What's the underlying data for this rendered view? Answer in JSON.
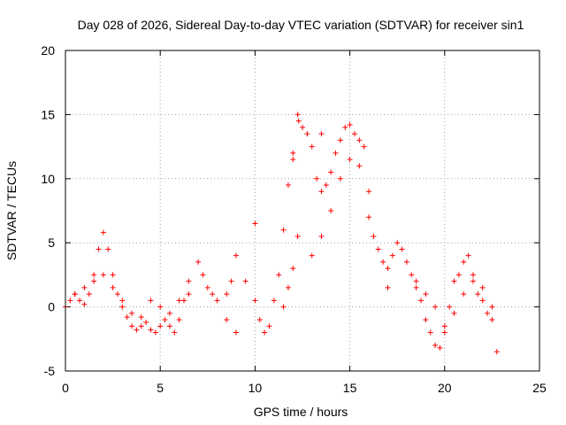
{
  "chart_data": {
    "type": "scatter",
    "title": "Day 028 of 2026, Sidereal Day-to-day VTEC variation (SDTVAR) for receiver sin1",
    "xlabel": "GPS time / hours",
    "ylabel": "SDTVAR / TECUs",
    "xlim": [
      0,
      25
    ],
    "ylim": [
      -5,
      20
    ],
    "x_ticks": [
      "0",
      "5",
      "10",
      "15",
      "20",
      "25"
    ],
    "y_ticks": [
      "-5",
      "0",
      "5",
      "10",
      "15",
      "20"
    ],
    "grid": true,
    "marker": "plus",
    "color": "#ff0000",
    "series": [
      {
        "name": "SDTVAR",
        "x": [
          0.0,
          0.25,
          0.5,
          0.75,
          1.0,
          1.25,
          1.5,
          1.75,
          2.0,
          2.25,
          2.5,
          2.75,
          3.0,
          3.25,
          3.5,
          3.75,
          4.0,
          4.25,
          4.5,
          4.75,
          5.0,
          5.25,
          5.5,
          5.75,
          6.0,
          6.25,
          6.5,
          7.0,
          7.25,
          7.5,
          7.75,
          8.0,
          8.5,
          8.75,
          9.0,
          9.5,
          10.0,
          10.25,
          10.5,
          10.75,
          11.0,
          11.25,
          11.5,
          11.75,
          12.0,
          12.25,
          12.5,
          12.75,
          13.0,
          13.25,
          13.5,
          13.75,
          14.0,
          14.25,
          14.5,
          14.75,
          15.0,
          15.25,
          15.5,
          15.75,
          16.0,
          16.25,
          16.5,
          16.75,
          17.0,
          17.25,
          17.5,
          17.75,
          18.0,
          18.25,
          18.5,
          18.75,
          19.0,
          19.25,
          19.5,
          19.75,
          20.0,
          20.25,
          20.5,
          20.75,
          21.0,
          21.25,
          21.5,
          21.75,
          22.0,
          22.25,
          22.5,
          22.75,
          0.5,
          1.0,
          1.5,
          2.0,
          2.5,
          3.0,
          3.5,
          4.0,
          4.5,
          5.0,
          5.5,
          6.0,
          6.5,
          8.5,
          9.0,
          11.5,
          11.75,
          12.0,
          12.25,
          13.0,
          13.5,
          14.0,
          14.5,
          15.0,
          15.5,
          16.0,
          18.5,
          19.0,
          19.5,
          20.0,
          20.5,
          21.0,
          21.5,
          22.0,
          22.5,
          10.0,
          12.0,
          12.3,
          13.5,
          17.0
        ],
        "y": [
          0.0,
          0.5,
          1.0,
          0.5,
          0.2,
          1.0,
          2.5,
          4.5,
          5.8,
          4.5,
          2.5,
          1.0,
          0.0,
          -0.8,
          -1.5,
          -1.8,
          -1.5,
          -1.2,
          -1.8,
          -2.0,
          -1.5,
          -1.0,
          -1.5,
          -2.0,
          -1.0,
          0.5,
          2.0,
          3.5,
          2.5,
          1.5,
          1.0,
          0.5,
          1.0,
          2.0,
          4.0,
          2.0,
          0.5,
          -1.0,
          -2.0,
          -1.5,
          0.5,
          2.5,
          6.0,
          9.5,
          11.5,
          15.0,
          14.0,
          13.5,
          12.5,
          10.0,
          9.0,
          9.5,
          10.5,
          12.0,
          13.0,
          14.0,
          14.2,
          13.5,
          13.0,
          12.5,
          7.0,
          5.5,
          4.5,
          3.5,
          3.0,
          4.0,
          5.0,
          4.5,
          3.5,
          2.5,
          1.5,
          0.5,
          -1.0,
          -2.0,
          -3.0,
          -3.2,
          -2.0,
          0.0,
          2.0,
          2.5,
          3.5,
          4.0,
          2.5,
          1.0,
          0.5,
          -0.5,
          -1.0,
          -3.5,
          1.0,
          1.5,
          2.0,
          2.5,
          1.5,
          0.5,
          -0.5,
          -0.8,
          0.5,
          0.0,
          -0.5,
          0.5,
          1.0,
          -1.0,
          -2.0,
          0.0,
          1.5,
          3.0,
          5.5,
          4.0,
          5.5,
          7.5,
          10.0,
          11.5,
          11.0,
          9.0,
          2.0,
          1.0,
          0.0,
          -1.5,
          -0.5,
          1.0,
          2.0,
          1.5,
          0.0,
          6.5,
          12.0,
          14.5,
          13.5,
          1.5
        ]
      }
    ]
  }
}
